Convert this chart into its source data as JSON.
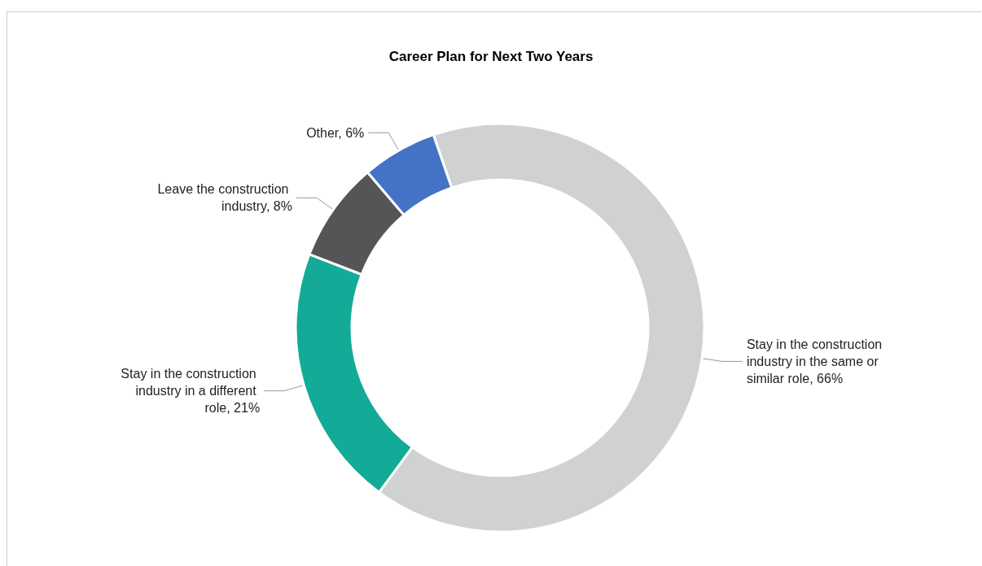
{
  "chart_data": {
    "type": "donut",
    "title": "Career Plan for Next Two Years",
    "categories": [
      "Stay in the construction industry in the same or similar role",
      "Stay in the construction industry in a different role",
      "Leave the construction industry",
      "Other"
    ],
    "values": [
      66,
      21,
      8,
      6
    ],
    "value_labels": [
      "66%",
      "21%",
      "8%",
      "6%"
    ],
    "colors": [
      "#d0d2d1",
      "#13ab97",
      "#545557",
      "#4472c4"
    ],
    "legend": false
  }
}
